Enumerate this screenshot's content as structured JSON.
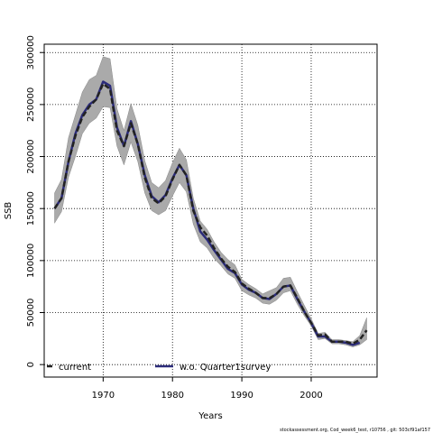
{
  "chart_data": {
    "type": "line",
    "xlabel": "Years",
    "ylabel": "SSB",
    "xlim": [
      1961.5,
      2009.5
    ],
    "ylim": [
      -12000,
      308000
    ],
    "x_ticks": [
      1970,
      1980,
      1990,
      2000
    ],
    "y_ticks": [
      0,
      50000,
      100000,
      150000,
      200000,
      250000,
      300000
    ],
    "y_tick_labels": [
      "0",
      "50000",
      "100000",
      "150000",
      "200000",
      "250000",
      "300000"
    ],
    "grid": true,
    "legend_position": "bottom",
    "band_color": "#aaaaaa",
    "x": [
      1963,
      1964,
      1965,
      1966,
      1967,
      1968,
      1969,
      1970,
      1971,
      1972,
      1973,
      1974,
      1975,
      1976,
      1977,
      1978,
      1979,
      1980,
      1981,
      1982,
      1983,
      1984,
      1985,
      1986,
      1987,
      1988,
      1989,
      1990,
      1991,
      1992,
      1993,
      1994,
      1995,
      1996,
      1997,
      1998,
      1999,
      2000,
      2001,
      2002,
      2003,
      2004,
      2005,
      2006,
      2007,
      2008
    ],
    "band_upper": [
      165000,
      178000,
      218000,
      240000,
      262000,
      274000,
      278000,
      296000,
      294000,
      246000,
      225000,
      251000,
      230000,
      196000,
      175000,
      170000,
      177000,
      194000,
      208000,
      197000,
      160000,
      138000,
      130000,
      118000,
      108000,
      101000,
      96000,
      82000,
      77000,
      73000,
      68000,
      71000,
      74000,
      83000,
      84000,
      70000,
      57000,
      44000,
      30000,
      31000,
      24000,
      24000,
      23000,
      22000,
      28000,
      45000
    ],
    "band_lower": [
      136000,
      147000,
      180000,
      200000,
      222000,
      232000,
      237000,
      248000,
      247000,
      210000,
      192000,
      214000,
      195000,
      165000,
      148000,
      144000,
      148000,
      162000,
      175000,
      166000,
      135000,
      118000,
      112000,
      102000,
      95000,
      87000,
      83000,
      71000,
      67000,
      64000,
      59000,
      58000,
      62000,
      69000,
      71000,
      58000,
      47000,
      37000,
      24000,
      25000,
      20000,
      20000,
      19000,
      17000,
      19000,
      24000
    ],
    "series": [
      {
        "name": "current",
        "color": "#222222",
        "style": "dashed",
        "values": [
          150000,
          160000,
          195000,
          220000,
          238000,
          248000,
          255000,
          270000,
          265000,
          225000,
          210000,
          232000,
          212000,
          180000,
          160000,
          155000,
          162000,
          178000,
          192000,
          182000,
          148000,
          132000,
          124000,
          112000,
          102000,
          94000,
          89000,
          78000,
          73000,
          69000,
          64000,
          64000,
          68000,
          75000,
          76000,
          64000,
          51000,
          40000,
          28000,
          29000,
          22000,
          22000,
          22000,
          20000,
          24000,
          33000
        ]
      },
      {
        "name": "w.o. Quarter1survey",
        "color": "#2b2b7a",
        "style": "solid",
        "values": [
          150000,
          160000,
          195000,
          222000,
          240000,
          250000,
          255000,
          272000,
          268000,
          228000,
          210000,
          234000,
          212000,
          182000,
          162000,
          156000,
          163000,
          179000,
          192000,
          182000,
          150000,
          128000,
          120000,
          110000,
          101000,
          92000,
          88000,
          77000,
          72000,
          69000,
          64000,
          63000,
          68000,
          75000,
          76000,
          63000,
          51000,
          40000,
          27000,
          27000,
          22000,
          22000,
          21000,
          19000,
          21000,
          null
        ]
      }
    ]
  },
  "legend": {
    "items": [
      "current",
      "w.o. Quarter1survey"
    ]
  },
  "footer_text": "stockassessment.org, Cod_week6_test, r10756 , git: 503cf91af157"
}
